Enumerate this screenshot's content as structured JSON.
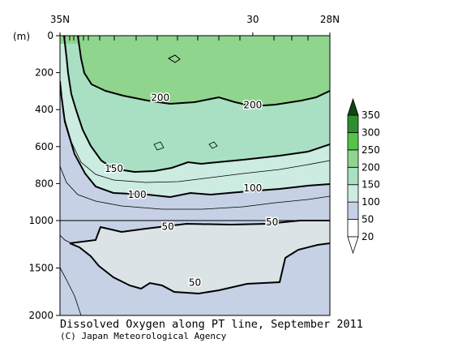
{
  "chart_data": {
    "type": "contour",
    "title": "Dissolved Oxygen along PT line, September 2011",
    "credit": "(C) Japan Meteorological Agency",
    "y_unit_label": "(m)",
    "x_axis": {
      "ticks": [
        {
          "value": 35,
          "label": "35N"
        },
        {
          "value": 30,
          "label": "30"
        },
        {
          "value": 28,
          "label": "28N"
        }
      ],
      "range": [
        35,
        28
      ]
    },
    "y_axis": {
      "upper_ticks": [
        0,
        200,
        400,
        600,
        800,
        1000
      ],
      "lower_ticks": [
        1500,
        2000
      ],
      "range": [
        0,
        2000
      ],
      "break_depth": 1000
    },
    "colorbar": {
      "levels": [
        20,
        50,
        100,
        150,
        200,
        250,
        300,
        350
      ],
      "labels": [
        "20",
        "50",
        "100",
        "150",
        "200",
        "250",
        "300",
        "350"
      ],
      "colors": [
        "#ffffff",
        "#c6d1e6",
        "#ccebe1",
        "#a9e0c3",
        "#8fd58d",
        "#55c24a",
        "#2d8f2d",
        "#114611"
      ]
    },
    "contour_labels": [
      {
        "value": "200",
        "lat": 32.4,
        "depth": 335
      },
      {
        "value": "200",
        "lat": 30.0,
        "depth": 375
      },
      {
        "value": "150",
        "lat": 33.6,
        "depth": 720
      },
      {
        "value": "100",
        "lat": 33.0,
        "depth": 860
      },
      {
        "value": "100",
        "lat": 30.0,
        "depth": 825
      },
      {
        "value": "50",
        "lat": 29.5,
        "depth": 1015
      },
      {
        "value": "50",
        "lat": 32.2,
        "depth": 1065
      },
      {
        "value": "50",
        "lat": 31.5,
        "depth": 1655
      }
    ]
  }
}
